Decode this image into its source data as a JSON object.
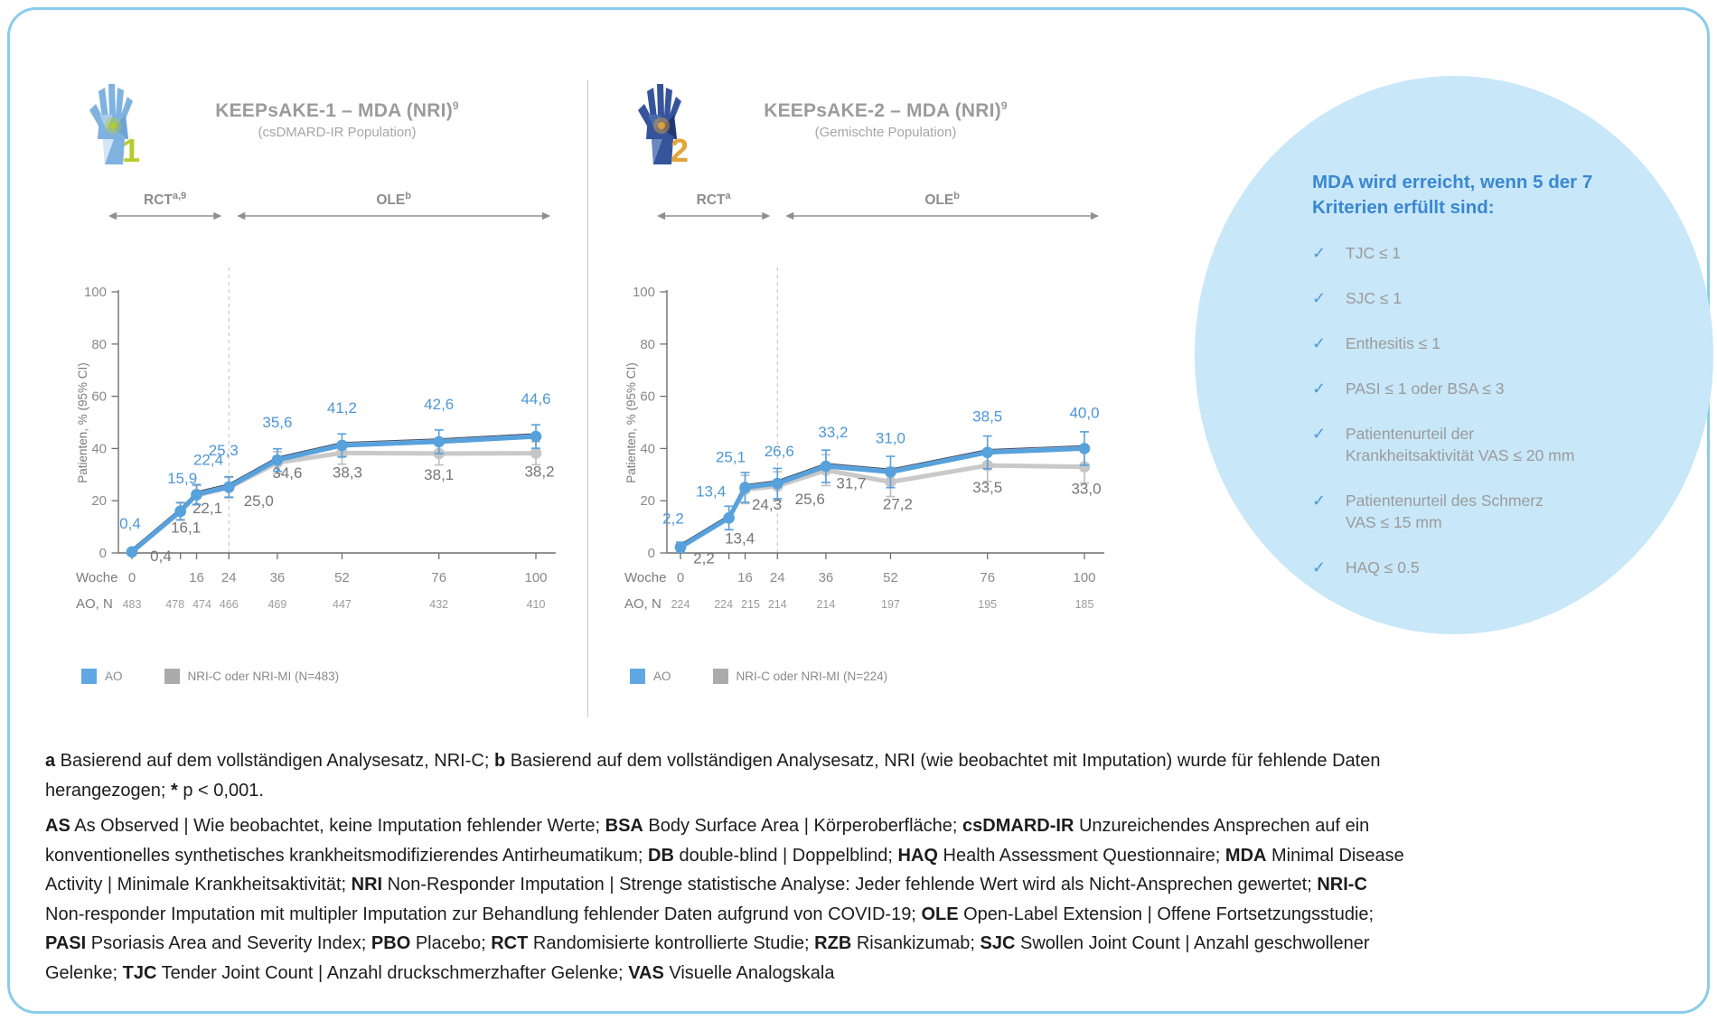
{
  "page": {
    "border_color": "#8ACCEB",
    "background": "#FFFFFF"
  },
  "chart_data": [
    {
      "type": "line",
      "title": "KEEPsAKE-1 – MDA (NRI)",
      "title_sup": "9",
      "subtitle": "(csDMARD-IR Population)",
      "phases": [
        {
          "label": "RCT",
          "sup": "a,9"
        },
        {
          "label": "OLE",
          "sup": "b"
        }
      ],
      "ylabel": "Patienten, % (95% CI)",
      "ylim": [
        0,
        100
      ],
      "yticks": [
        0,
        20,
        40,
        60,
        80,
        100
      ],
      "x_label": "Woche",
      "n_label": "AO, N",
      "weeks": [
        0,
        12,
        16,
        24,
        36,
        52,
        76,
        100
      ],
      "labeled_weeks": [
        0,
        16,
        24,
        36,
        52,
        76,
        100
      ],
      "dashed_week": 24,
      "series": [
        {
          "name": "AO",
          "color": "#57A1DD",
          "label_color": "#4E96D6",
          "values": [
            0.4,
            15.9,
            22.4,
            25.3,
            35.6,
            41.2,
            42.6,
            44.6
          ],
          "labels": [
            "0,4",
            "15,9",
            "22,4",
            "25,3",
            "35,6",
            "41,2",
            "42,6",
            "44,6"
          ],
          "ci_half": [
            0.8,
            3.3,
            3.8,
            3.9,
            4.3,
            4.4,
            4.5,
            4.5
          ]
        },
        {
          "name": "NRI-C oder NRI-MI (N=483)",
          "color": "#C9C9C9",
          "label_color": "#767676",
          "values": [
            0.4,
            16.1,
            22.1,
            25.0,
            34.6,
            38.3,
            38.1,
            38.2
          ],
          "labels": [
            "0,4",
            "16,1",
            "22,1",
            "25,0",
            "34,6",
            "38,3",
            "38,1",
            "38,2"
          ],
          "ci_half": [
            0.8,
            3.3,
            3.7,
            3.9,
            4.2,
            4.3,
            4.4,
            4.4
          ]
        }
      ],
      "n_values": [
        "483",
        "478",
        "474",
        "466",
        "469",
        "447",
        "432",
        "410"
      ],
      "legend": [
        {
          "label": "AO",
          "color": "#5FA8E3"
        },
        {
          "label": "NRI-C oder NRI-MI (N=483)",
          "color": "#ABABAB"
        }
      ],
      "icon": {
        "number": "1",
        "hand": "#7FB2DF",
        "accent": "#B8CB2E",
        "facets": [
          "#A9CDEC",
          "#6CA4D6",
          "#D4E6F6"
        ]
      }
    },
    {
      "type": "line",
      "title": "KEEPsAKE-2 – MDA (NRI)",
      "title_sup": "9",
      "subtitle": "(Gemischte Population)",
      "phases": [
        {
          "label": "RCT",
          "sup": "a"
        },
        {
          "label": "OLE",
          "sup": "b"
        }
      ],
      "ylabel": "Patienten, % (95% CI)",
      "ylim": [
        0,
        100
      ],
      "yticks": [
        0,
        20,
        40,
        60,
        80,
        100
      ],
      "x_label": "Woche",
      "n_label": "AO, N",
      "weeks": [
        0,
        12,
        16,
        24,
        36,
        52,
        76,
        100
      ],
      "labeled_weeks": [
        0,
        16,
        24,
        36,
        52,
        76,
        100
      ],
      "dashed_week": 24,
      "series": [
        {
          "name": "AO",
          "color": "#57A1DD",
          "label_color": "#4E96D6",
          "values": [
            2.2,
            13.4,
            25.1,
            26.6,
            33.2,
            31.0,
            38.5,
            40.0
          ],
          "labels": [
            "2,2",
            "13,4",
            "25,1",
            "26,6",
            "33,2",
            "31,0",
            "38,5",
            "40,0"
          ],
          "ci_half": [
            1.9,
            4.5,
            5.7,
            5.8,
            6.2,
            6.0,
            6.3,
            6.4
          ]
        },
        {
          "name": "NRI-C oder NRI-MI (N=224)",
          "color": "#C9C9C9",
          "label_color": "#767676",
          "values": [
            2.2,
            13.4,
            24.3,
            25.6,
            31.7,
            27.2,
            33.5,
            33.0
          ],
          "labels": [
            "2,2",
            "13,4",
            "24,3",
            "25,6",
            "31,7",
            "27,2",
            "33,5",
            "33,0"
          ],
          "ci_half": [
            1.9,
            4.5,
            5.4,
            5.5,
            5.9,
            5.6,
            6.1,
            6.2
          ]
        }
      ],
      "n_values": [
        "224",
        "224",
        "215",
        "214",
        "214",
        "197",
        "195",
        "185"
      ],
      "legend": [
        {
          "label": "AO",
          "color": "#5FA8E3"
        },
        {
          "label": "NRI-C oder NRI-MI (N=224)",
          "color": "#ABABAB"
        }
      ],
      "icon": {
        "number": "2",
        "hand": "#35549B",
        "accent": "#E2A43C",
        "facets": [
          "#4A6BAB",
          "#22396F",
          "#6C88BE"
        ]
      }
    }
  ],
  "bubble": {
    "background": "#C8E7F8",
    "heading_color": "#3A87D2",
    "heading": "MDA wird erreicht, wenn 5 der 7\nKriterien erfüllt sind:",
    "check_glyph": "✓",
    "items": [
      "TJC ≤ 1",
      "SJC ≤ 1",
      "Enthesitis ≤ 1",
      "PASI ≤ 1 oder BSA ≤ 3",
      "Patientenurteil der\nKrankheitsaktivität VAS ≤ 20 mm",
      "Patientenurteil des Schmerz\nVAS ≤ 15 mm",
      "HAQ ≤ 0.5"
    ]
  },
  "footnotes": {
    "note": [
      {
        "b": true,
        "t": "a"
      },
      {
        "b": false,
        "t": " Basierend auf dem vollständigen Analysesatz, NRI-C; "
      },
      {
        "b": true,
        "t": "b"
      },
      {
        "b": false,
        "t": " Basierend auf dem vollständigen Analysesatz, NRI (wie beobachtet mit Imputation) wurde für fehlende Daten herangezogen; "
      },
      {
        "b": true,
        "t": "*"
      },
      {
        "b": false,
        "t": " p < 0,001."
      }
    ],
    "abbreviations": [
      {
        "b": true,
        "t": "AS"
      },
      {
        "b": false,
        "t": " As Observed | Wie beobachtet, keine Imputation fehlender Werte; "
      },
      {
        "b": true,
        "t": "BSA"
      },
      {
        "b": false,
        "t": " Body Surface Area | Körperoberfläche; "
      },
      {
        "b": true,
        "t": "csDMARD-IR"
      },
      {
        "b": false,
        "t": " Unzureichendes Ansprechen auf ein konventionelles synthetisches krankheitsmodifizierendes Antirheumatikum; "
      },
      {
        "b": true,
        "t": "DB"
      },
      {
        "b": false,
        "t": " double-blind | Doppelblind; "
      },
      {
        "b": true,
        "t": "HAQ"
      },
      {
        "b": false,
        "t": " Health Assessment Questionnaire; "
      },
      {
        "b": true,
        "t": "MDA"
      },
      {
        "b": false,
        "t": " Minimal Disease Activity | Minimale Krankheitsaktivität; "
      },
      {
        "b": true,
        "t": "NRI"
      },
      {
        "b": false,
        "t": " Non-Responder Imputation | Strenge statistische Analyse: Jeder fehlende Wert wird als Nicht-Ansprechen gewertet; "
      },
      {
        "b": true,
        "t": "NRI-C"
      },
      {
        "b": false,
        "t": " Non-responder Imputation mit multipler Imputation zur Behandlung fehlender Daten aufgrund von COVID-19; "
      },
      {
        "b": true,
        "t": "OLE"
      },
      {
        "b": false,
        "t": " Open-Label Extension | Offene Fortsetzungsstudie; "
      },
      {
        "b": true,
        "t": "PASI"
      },
      {
        "b": false,
        "t": " Psoriasis Area and Severity Index; "
      },
      {
        "b": true,
        "t": "PBO"
      },
      {
        "b": false,
        "t": " Placebo; "
      },
      {
        "b": true,
        "t": "RCT"
      },
      {
        "b": false,
        "t": " Randomisierte kontrollierte Studie; "
      },
      {
        "b": true,
        "t": "RZB"
      },
      {
        "b": false,
        "t": " Risankizumab; "
      },
      {
        "b": true,
        "t": "SJC"
      },
      {
        "b": false,
        "t": " Swollen Joint Count | Anzahl geschwollener Gelenke; "
      },
      {
        "b": true,
        "t": "TJC"
      },
      {
        "b": false,
        "t": " Tender Joint Count | Anzahl druckschmerzhafter Gelenke; "
      },
      {
        "b": true,
        "t": "VAS"
      },
      {
        "b": false,
        "t": " Visuelle Analogskala"
      }
    ]
  }
}
